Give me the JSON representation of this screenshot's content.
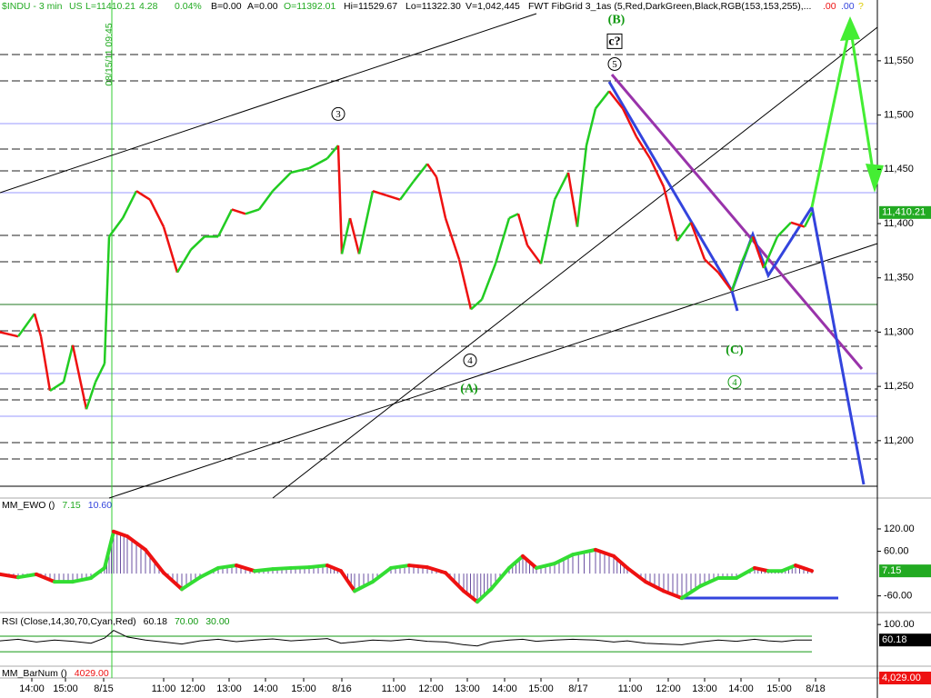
{
  "header": {
    "items": [
      "$INDU - 3 min",
      "US",
      "L=11410.21",
      "4.28",
      "0.04%",
      "B=0.00",
      "A=0.00",
      "O=11392.01",
      "Hi=11529.67",
      "Lo=11322.30",
      "V=1,042,445",
      "FWT FibGrid 3_1as (5,Red,DarkGreen,Black,RGB(153,153,255),...",
      ".00",
      ".00",
      "?"
    ],
    "session_label": "08/15/11 09:45"
  },
  "chart_data": [
    {
      "type": "line",
      "name": "$INDU",
      "xlim": [
        0,
        482.5
      ],
      "xticks": [
        {
          "value": 17.5,
          "label": "14:00"
        },
        {
          "value": 36,
          "label": "15:00"
        },
        {
          "value": 57,
          "label": "8/15"
        },
        {
          "value": 90,
          "label": "11:00"
        },
        {
          "value": 106,
          "label": "12:00"
        },
        {
          "value": 126,
          "label": "13:00"
        },
        {
          "value": 146,
          "label": "14:00"
        },
        {
          "value": 167,
          "label": "15:00"
        },
        {
          "value": 188,
          "label": "8/16"
        },
        {
          "value": 216.5,
          "label": "11:00"
        },
        {
          "value": 237,
          "label": "12:00"
        },
        {
          "value": 257,
          "label": "13:00"
        },
        {
          "value": 277.5,
          "label": "14:00"
        },
        {
          "value": 297.5,
          "label": "15:00"
        },
        {
          "value": 318,
          "label": "8/17"
        },
        {
          "value": 346.5,
          "label": "11:00"
        },
        {
          "value": 367.5,
          "label": "12:00"
        },
        {
          "value": 387.5,
          "label": "13:00"
        },
        {
          "value": 407.5,
          "label": "14:00"
        },
        {
          "value": 428.5,
          "label": "15:00"
        },
        {
          "value": 448.5,
          "label": "8/18"
        }
      ],
      "ylim": [
        11158,
        11606
      ],
      "yticks": [
        {
          "value": 11550,
          "label": "11,550"
        },
        {
          "value": 11500,
          "label": "11,500"
        },
        {
          "value": 11450,
          "label": "11,450"
        },
        {
          "value": 11400,
          "label": "11,400"
        },
        {
          "value": 11350,
          "label": "11,350"
        },
        {
          "value": 11300,
          "label": "11,300"
        },
        {
          "value": 11250,
          "label": "11,250"
        },
        {
          "value": 11200,
          "label": "11,200"
        }
      ],
      "up_color": "#22cc22",
      "down_color": "#ee1111",
      "x": [
        0,
        10,
        19,
        22.5,
        27.5,
        35,
        40,
        47.5,
        52.5,
        57.5,
        60,
        67.5,
        75,
        82.5,
        90,
        97.5,
        105,
        112.5,
        120,
        127.5,
        135,
        142.5,
        150,
        160,
        170,
        180,
        186,
        188,
        192.5,
        197.5,
        205,
        212.5,
        220,
        227.5,
        235,
        240,
        245,
        252.5,
        259,
        265,
        272.5,
        280,
        285,
        290,
        297.5,
        305,
        312.5,
        317.5,
        322.5,
        327.5,
        335,
        342.5,
        350,
        357.5,
        365,
        372.5,
        380,
        387.5,
        395,
        402.5,
        407.5,
        414,
        420,
        427.5,
        435,
        442.5,
        446.5
      ],
      "values": [
        11300,
        11296,
        11317,
        11296,
        11246,
        11254,
        11288,
        11229,
        11254,
        11271,
        11388,
        11405,
        11430,
        11422,
        11397,
        11355,
        11376,
        11388,
        11388,
        11413,
        11409,
        11413,
        11430,
        11447,
        11451,
        11460,
        11472,
        11372,
        11405,
        11372,
        11430,
        11426,
        11422,
        11439,
        11455,
        11443,
        11405,
        11367,
        11321,
        11330,
        11363,
        11405,
        11409,
        11380,
        11363,
        11422,
        11447,
        11397,
        11472,
        11506,
        11522,
        11506,
        11480,
        11460,
        11434,
        11384,
        11401,
        11367,
        11355,
        11338,
        11363,
        11388,
        11359,
        11388,
        11401,
        11397,
        11410.21
      ],
      "last": {
        "value": 11410.21,
        "label": "11,410.21",
        "color": "#22aa22"
      },
      "annotations": [
        {
          "text": "(B)",
          "x": 339,
          "y": 11588,
          "color": "#119911",
          "circle": false,
          "box": false
        },
        {
          "text": "c?",
          "x": 338,
          "y": 11568,
          "color": "#000000",
          "circle": false,
          "box": true
        },
        {
          "text": "5",
          "x": 338,
          "y": 11547,
          "color": "#000000",
          "circle": true,
          "box": false
        },
        {
          "text": "3",
          "x": 186,
          "y": 11501,
          "color": "#000000",
          "circle": true,
          "box": false
        },
        {
          "text": "4",
          "x": 258.5,
          "y": 11274,
          "color": "#000000",
          "circle": true,
          "box": false
        },
        {
          "text": "(A)",
          "x": 258,
          "y": 11248,
          "color": "#119911",
          "circle": false,
          "box": false
        },
        {
          "text": "(C)",
          "x": 404,
          "y": 11284,
          "color": "#119911",
          "circle": false,
          "box": false
        },
        {
          "text": "4",
          "x": 404,
          "y": 11254,
          "color": "#119911",
          "circle": true,
          "box": false
        }
      ]
    },
    {
      "type": "oscillator",
      "name": "MM_EWO ()",
      "legend_values": [
        "7.15",
        "10.60"
      ],
      "xlim": [
        0,
        482.5
      ],
      "ylim": [
        -100,
        203
      ],
      "yticks": [
        {
          "value": 120,
          "label": "120.00"
        },
        {
          "value": 60,
          "label": "60.00"
        },
        {
          "value": -60,
          "label": "-60.00"
        }
      ],
      "up_color": "#33dd33",
      "down_color": "#ee1111",
      "hist_color": "#6a4fa0",
      "x": [
        0,
        10,
        20,
        30,
        40,
        50,
        57.5,
        62.5,
        70,
        80,
        90,
        100,
        110,
        120,
        130,
        140,
        150,
        160,
        170,
        180,
        187.5,
        195,
        205,
        215,
        225,
        235,
        245,
        255,
        262.5,
        270,
        280,
        287.5,
        295,
        305,
        315,
        327.5,
        337.5,
        345,
        355,
        365,
        375,
        385,
        395,
        405,
        415,
        422.5,
        430,
        437.5,
        446.5
      ],
      "values": [
        -2,
        -10,
        -2,
        -22,
        -22,
        -12,
        15,
        113,
        100,
        64,
        2,
        -42,
        -10,
        15,
        22,
        7,
        12,
        15,
        17,
        22,
        7,
        -47,
        -22,
        15,
        22,
        17,
        2,
        -47,
        -76,
        -42,
        15,
        47,
        15,
        27,
        51,
        64,
        47,
        15,
        -22,
        -47,
        -66,
        -34,
        -12,
        -12,
        15,
        7,
        7,
        22,
        7.15
      ],
      "last": {
        "value": 7.15,
        "label": "7.15",
        "color": "#22aa22"
      }
    },
    {
      "type": "rsi",
      "name": "RSI (Close,14,30,70,Cyan,Red)",
      "legend_values": [
        "60.18",
        "70.00",
        "30.00"
      ],
      "xlim": [
        0,
        482.5
      ],
      "ylim": [
        -7,
        126
      ],
      "yticks": [
        {
          "value": 100,
          "label": "100.00"
        }
      ],
      "levels": [
        70,
        30
      ],
      "level_color": "#119911",
      "color": "#000000",
      "x": [
        0,
        10,
        20,
        30,
        40,
        50,
        57.5,
        62.5,
        70,
        80,
        90,
        100,
        110,
        120,
        130,
        140,
        150,
        160,
        170,
        180,
        187.5,
        195,
        205,
        215,
        225,
        235,
        245,
        255,
        262.5,
        270,
        280,
        287.5,
        295,
        305,
        315,
        327.5,
        337.5,
        345,
        355,
        365,
        375,
        385,
        395,
        405,
        415,
        422.5,
        430,
        437.5,
        446.5
      ],
      "values": [
        58,
        62,
        55,
        60,
        57,
        52,
        65,
        85,
        68,
        60,
        55,
        50,
        58,
        62,
        56,
        60,
        63,
        58,
        61,
        64,
        52,
        55,
        60,
        58,
        62,
        57,
        55,
        48,
        45,
        55,
        60,
        62,
        57,
        60,
        62,
        60,
        55,
        58,
        52,
        50,
        48,
        55,
        60,
        57,
        62,
        58,
        56,
        60,
        60.18
      ],
      "last": {
        "value": 60.18,
        "label": "60.18",
        "color": "#000000"
      }
    },
    {
      "type": "label",
      "name": "MM_BarNum ()",
      "legend_values": [
        "4029.00"
      ],
      "last": {
        "value": 4029,
        "label": "4,029.00",
        "color": "#ee1111"
      }
    }
  ]
}
